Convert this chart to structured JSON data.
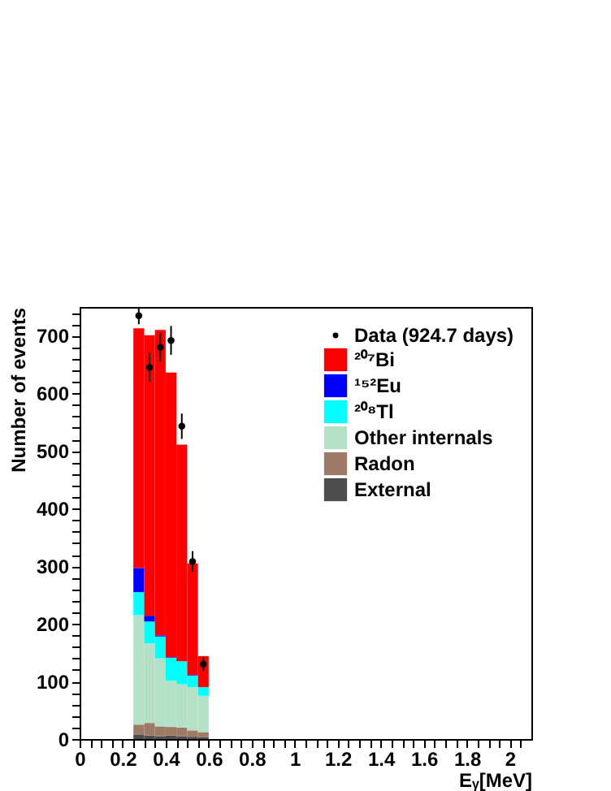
{
  "chart_data": {
    "type": "bar",
    "xlabel": "Eᵧ[MeV]",
    "ylabel": "Number of events",
    "x": [
      0.275,
      0.325,
      0.375,
      0.425,
      0.475,
      0.525,
      0.575
    ],
    "stacked": true,
    "series": [
      {
        "name": "External",
        "color": "#4d4d4d",
        "values": [
          8,
          6,
          5,
          6,
          5,
          4,
          3
        ]
      },
      {
        "name": "Radon",
        "color": "#9c7a66",
        "values": [
          17,
          22,
          17,
          15,
          15,
          11,
          9
        ]
      },
      {
        "name": "Other internals",
        "color": "#b5e0c8",
        "values": [
          190,
          138,
          118,
          80,
          75,
          75,
          63
        ]
      },
      {
        "name": "²⁰⁸Tl",
        "color": "#00ffff",
        "values": [
          40,
          38,
          38,
          40,
          40,
          20,
          15
        ]
      },
      {
        "name": "¹⁵²Eu",
        "color": "#0000ff",
        "values": [
          42,
          10,
          2,
          1,
          null,
          1,
          null
        ]
      },
      {
        "name": "²⁰⁷Bi",
        "color": "#ff0000",
        "values": [
          416,
          487,
          530,
          494,
          376,
          194,
          54
        ]
      },
      {
        "name": "Data (924.7 days)",
        "type": "scatter",
        "color": "#000000",
        "x": [
          0.275,
          0.325,
          0.375,
          0.425,
          0.475,
          0.525,
          0.575
        ],
        "values": [
          735,
          645,
          680,
          692,
          543,
          308,
          130
        ],
        "errors": [
          15,
          25,
          25,
          25,
          22,
          18,
          12
        ]
      }
    ],
    "xlim": [
      0,
      2.1
    ],
    "xticks": [
      0,
      {
        "value": 0.05,
        "label": null
      },
      {
        "value": 0.1,
        "label": null
      },
      {
        "value": 0.15,
        "label": null
      },
      0.2,
      {
        "value": 0.25,
        "label": null
      },
      {
        "value": 0.3,
        "label": null
      },
      {
        "value": 0.35,
        "label": null
      },
      0.4,
      {
        "value": 0.45,
        "label": null
      },
      {
        "value": 0.5,
        "label": null
      },
      {
        "value": 0.55,
        "label": null
      },
      0.6,
      {
        "value": 0.65,
        "label": null
      },
      {
        "value": 0.7,
        "label": null
      },
      {
        "value": 0.75,
        "label": null
      },
      0.8,
      {
        "value": 0.85,
        "label": null
      },
      {
        "value": 0.9,
        "label": null
      },
      {
        "value": 0.95,
        "label": null
      },
      1,
      {
        "value": 1.05,
        "label": null
      },
      {
        "value": 1.1,
        "label": null
      },
      {
        "value": 1.15,
        "label": null
      },
      1.2,
      {
        "value": 1.25,
        "label": null
      },
      {
        "value": 1.3,
        "label": null
      },
      {
        "value": 1.35,
        "label": null
      },
      1.4,
      {
        "value": 1.45,
        "label": null
      },
      {
        "value": 1.5,
        "label": null
      },
      {
        "value": 1.55,
        "label": null
      },
      1.6,
      {
        "value": 1.65,
        "label": null
      },
      {
        "value": 1.7,
        "label": null
      },
      {
        "value": 1.75,
        "label": null
      },
      1.8,
      {
        "value": 1.85,
        "label": null
      },
      {
        "value": 1.9,
        "label": null
      },
      {
        "value": 1.95,
        "label": null
      },
      2,
      {
        "value": 2.05,
        "label": null
      }
    ],
    "ylim": [
      0,
      750
    ],
    "yticks": [
      0,
      {
        "value": 20,
        "label": null
      },
      {
        "value": 40,
        "label": null
      },
      {
        "value": 60,
        "label": null
      },
      {
        "value": 80,
        "label": null
      },
      100,
      {
        "value": 120,
        "label": null
      },
      {
        "value": 140,
        "label": null
      },
      {
        "value": 160,
        "label": null
      },
      {
        "value": 180,
        "label": null
      },
      200,
      {
        "value": 220,
        "label": null
      },
      {
        "value": 240,
        "label": null
      },
      {
        "value": 260,
        "label": null
      },
      {
        "value": 280,
        "label": null
      },
      300,
      {
        "value": 320,
        "label": null
      },
      {
        "value": 340,
        "label": null
      },
      {
        "value": 360,
        "label": null
      },
      {
        "value": 380,
        "label": null
      },
      400,
      {
        "value": 420,
        "label": null
      },
      {
        "value": 440,
        "label": null
      },
      {
        "value": 460,
        "label": null
      },
      {
        "value": 480,
        "label": null
      },
      500,
      {
        "value": 520,
        "label": null
      },
      {
        "value": 540,
        "label": null
      },
      {
        "value": 560,
        "label": null
      },
      {
        "value": 580,
        "label": null
      },
      600,
      {
        "value": 620,
        "label": null
      },
      {
        "value": 640,
        "label": null
      },
      {
        "value": 660,
        "label": null
      },
      {
        "value": 680,
        "label": null
      },
      700,
      {
        "value": 720,
        "label": null
      },
      {
        "value": 740,
        "label": null
      }
    ],
    "legend": "top right",
    "marker": "circle",
    "grid": false
  }
}
